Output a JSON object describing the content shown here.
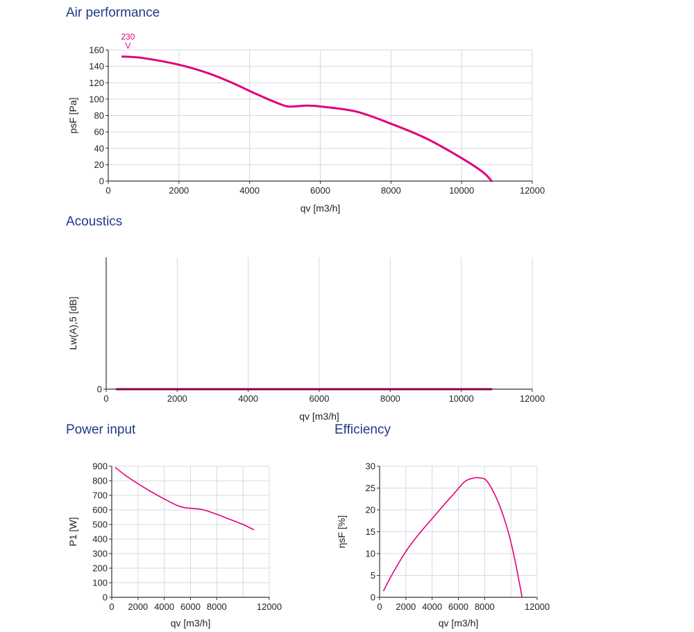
{
  "chart_data": [
    {
      "id": "air",
      "type": "line",
      "title": "Air performance",
      "xlabel": "qv [m3/h]",
      "ylabel": "psF [Pa]",
      "xlim": [
        0,
        12000
      ],
      "ylim": [
        0,
        160
      ],
      "xticks": [
        0,
        2000,
        4000,
        6000,
        8000,
        10000,
        12000
      ],
      "yticks": [
        0,
        20,
        40,
        60,
        80,
        100,
        120,
        140,
        160
      ],
      "grid": true,
      "annotation": {
        "line1": "230",
        "line2": "V"
      },
      "series": [
        {
          "name": "230 V",
          "color": "#e0007a",
          "x": [
            400,
            1000,
            2000,
            2800,
            3500,
            4200,
            4800,
            5100,
            5600,
            6000,
            7000,
            8000,
            9000,
            10000,
            10600,
            10850
          ],
          "y": [
            152,
            150,
            142,
            132,
            120,
            106,
            95,
            91,
            92,
            91,
            85,
            70,
            52,
            28,
            11,
            0
          ]
        }
      ]
    },
    {
      "id": "acoustics",
      "type": "line",
      "title": "Acoustics",
      "xlabel": "qv [m3/h]",
      "ylabel": "Lw(A),5 [dB]",
      "xlim": [
        0,
        12000
      ],
      "ylim": [
        0,
        1
      ],
      "xticks": [
        0,
        2000,
        4000,
        6000,
        8000,
        10000,
        12000
      ],
      "yticks": [
        0
      ],
      "grid": true,
      "series": [
        {
          "name": "230 V",
          "color": "#8b0045",
          "x": [
            300,
            10850
          ],
          "y": [
            0,
            0
          ]
        }
      ]
    },
    {
      "id": "power",
      "type": "line",
      "title": "Power input",
      "xlabel": "qv [m3/h]",
      "ylabel": "P1 [W]",
      "xlim": [
        0,
        12000
      ],
      "ylim": [
        0,
        900
      ],
      "xticks": [
        0,
        2000,
        4000,
        6000,
        8000,
        12000
      ],
      "gridx": [
        0,
        2000,
        4000,
        6000,
        8000,
        10000,
        12000
      ],
      "yticks": [
        0,
        100,
        200,
        300,
        400,
        500,
        600,
        700,
        800,
        900
      ],
      "grid": true,
      "series": [
        {
          "name": "230 V",
          "color": "#e0007a",
          "x": [
            300,
            1000,
            2000,
            3000,
            4000,
            5000,
            5600,
            6200,
            7000,
            8000,
            9000,
            10000,
            10800
          ],
          "y": [
            890,
            840,
            780,
            725,
            675,
            630,
            615,
            610,
            600,
            570,
            535,
            500,
            465
          ]
        }
      ]
    },
    {
      "id": "efficiency",
      "type": "line",
      "title": "Efficiency",
      "xlabel": "qv [m3/h]",
      "ylabel": "ηsF [%]",
      "xlim": [
        0,
        12000
      ],
      "ylim": [
        0,
        30
      ],
      "xticks": [
        0,
        2000,
        4000,
        6000,
        8000,
        12000
      ],
      "gridx": [
        0,
        2000,
        4000,
        6000,
        8000,
        10000,
        12000
      ],
      "yticks": [
        0,
        5,
        10,
        15,
        20,
        25,
        30
      ],
      "grid": true,
      "series": [
        {
          "name": "230 V",
          "color": "#e0007a",
          "x": [
            300,
            1000,
            2000,
            3000,
            4000,
            5000,
            5600,
            6500,
            7200,
            7700,
            8200,
            9000,
            9700,
            10200,
            10600,
            10850
          ],
          "y": [
            1.5,
            5.5,
            10.5,
            14.5,
            18,
            21.5,
            23.5,
            26.5,
            27.3,
            27.3,
            26.5,
            22,
            16,
            10,
            4,
            0
          ]
        }
      ]
    }
  ]
}
